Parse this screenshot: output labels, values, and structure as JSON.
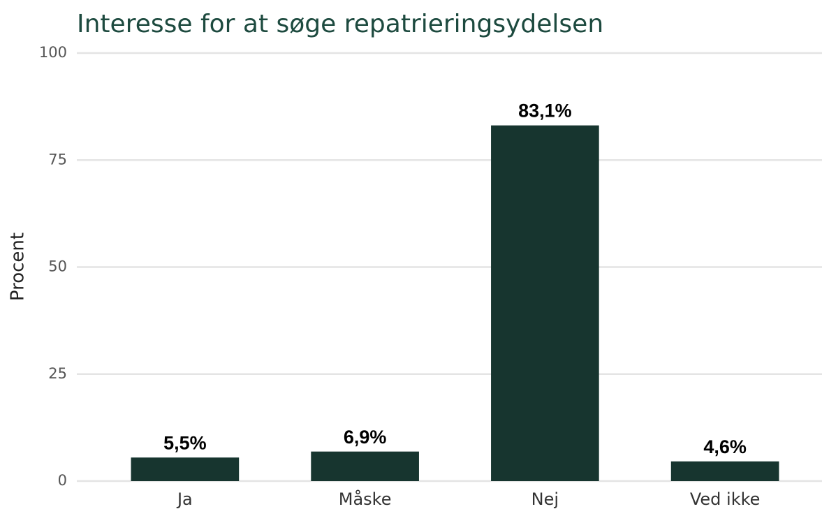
{
  "chart_data": {
    "type": "bar",
    "title": "Interesse for at søge repatrieringsydelsen",
    "y_label": "Procent",
    "categories": [
      "Ja",
      "Måske",
      "Nej",
      "Ved ikke"
    ],
    "values": [
      5.5,
      6.9,
      83.1,
      4.6
    ],
    "value_labels": [
      "5,5%",
      "6,9%",
      "83,1%",
      "4,6%"
    ],
    "color": "#17352f",
    "ylim": [
      0,
      100
    ],
    "yticks": [
      0,
      25,
      50,
      75,
      100
    ],
    "grid": true
  }
}
